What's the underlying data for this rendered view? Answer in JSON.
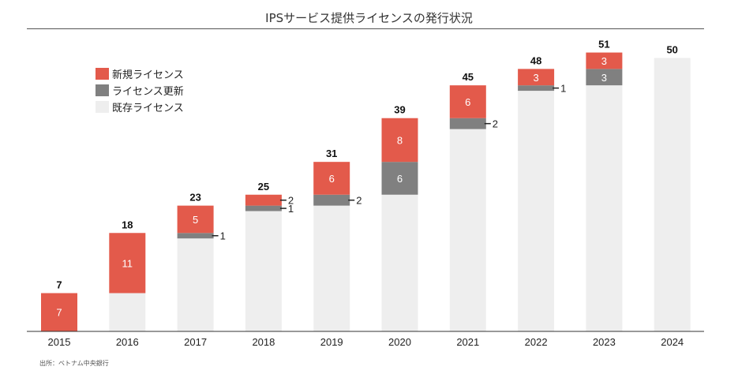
{
  "title": "IPSサービス提供ライセンスの発行状況",
  "source": "出所：ベトナム中央銀行",
  "colors": {
    "new": "#e35a4b",
    "renewal": "#808080",
    "existing": "#eeeeee",
    "axis": "#333333"
  },
  "chart_data": {
    "type": "bar",
    "stacked": true,
    "title": "IPSサービス提供ライセンスの発行状況",
    "categories": [
      "2015",
      "2016",
      "2017",
      "2018",
      "2019",
      "2020",
      "2021",
      "2022",
      "2023",
      "2024"
    ],
    "series": [
      {
        "name": "既存ライセンス",
        "values": [
          0,
          7,
          17,
          22,
          23,
          25,
          37,
          44,
          45,
          50
        ]
      },
      {
        "name": "ライセンス更新",
        "values": [
          0,
          0,
          1,
          1,
          2,
          6,
          2,
          1,
          3,
          0
        ]
      },
      {
        "name": "新規ライセンス",
        "values": [
          7,
          11,
          5,
          2,
          6,
          8,
          6,
          3,
          3,
          0
        ]
      }
    ],
    "totals": [
      7,
      18,
      23,
      25,
      31,
      39,
      45,
      48,
      51,
      50
    ],
    "ylim": [
      0,
      52
    ],
    "grid": false,
    "legend_position": "top-left"
  }
}
